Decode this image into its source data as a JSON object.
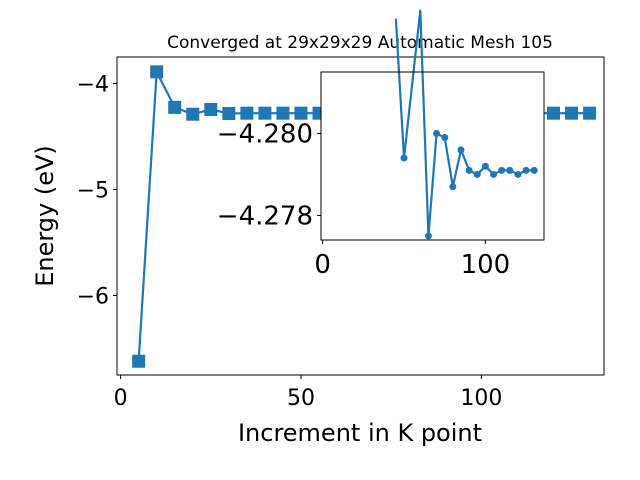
{
  "chart_data": [
    {
      "type": "line",
      "title": "Converged at 29x29x29 Automatic Mesh 105",
      "xlabel": "Increment in K point",
      "ylabel": "Energy (eV)",
      "xlim": [
        -1,
        134
      ],
      "ylim": [
        -6.75,
        -3.75
      ],
      "xticks": [
        0,
        50,
        100
      ],
      "xtick_labels": [
        "0",
        "50",
        "100"
      ],
      "yticks": [
        -6,
        -5,
        -4
      ],
      "ytick_labels": [
        "−6",
        "−5",
        "−4"
      ],
      "grid": false,
      "marker": "square",
      "color": "#1f77b4",
      "series": [
        {
          "x": [
            5,
            10,
            15,
            20,
            25,
            30,
            35,
            40,
            45,
            50,
            55,
            60,
            65,
            70,
            75,
            80,
            85,
            90,
            95,
            100,
            105,
            110,
            115,
            120,
            125,
            130
          ],
          "y": [
            -6.62,
            -3.89,
            -4.225,
            -4.29,
            -4.245,
            -4.283,
            -4.28,
            -4.28,
            -4.28,
            -4.28,
            -4.28,
            -4.28,
            -4.28,
            -4.28,
            -4.28,
            -4.28,
            -4.28,
            -4.28,
            -4.28,
            -4.28,
            -4.28,
            -4.28,
            -4.28,
            -4.28,
            -4.28,
            -4.28
          ]
        }
      ]
    },
    {
      "type": "line",
      "role": "inset",
      "xlim": [
        -1,
        136
      ],
      "ylim": [
        -4.2774,
        -4.2815
      ],
      "xticks": [
        0,
        100
      ],
      "xtick_labels": [
        "0",
        "100"
      ],
      "yticks": [
        -4.28,
        -4.278
      ],
      "ytick_labels": [
        "−4.280",
        "−4.278"
      ],
      "grid": false,
      "marker": "circle",
      "color": "#1f77b4",
      "series": [
        {
          "x": [
            45,
            50,
            60,
            65,
            70,
            75,
            80,
            85,
            90,
            95,
            100,
            105,
            110,
            115,
            120,
            125,
            130
          ],
          "y": [
            -4.2828,
            -4.2794,
            -4.283,
            -4.2775,
            -4.28,
            -4.2799,
            -4.2787,
            -4.2796,
            -4.2791,
            -4.279,
            -4.2792,
            -4.279,
            -4.2791,
            -4.2791,
            -4.279,
            -4.2791,
            -4.2791
          ]
        }
      ]
    }
  ]
}
